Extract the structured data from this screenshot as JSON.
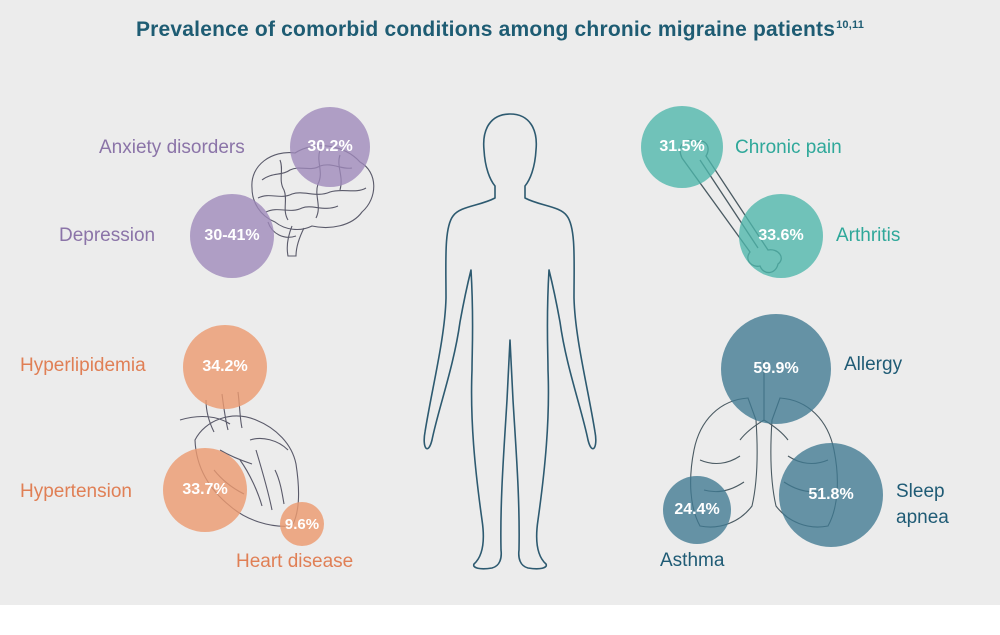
{
  "title": {
    "text": "Prevalence of comorbid conditions among chronic migraine patients",
    "superscript": "10,11"
  },
  "conditions": [
    {
      "name": "Anxiety disorders",
      "value": "30.2%",
      "color": "#9d88ba"
    },
    {
      "name": "Depression",
      "value": "30-41%",
      "color": "#9d88ba"
    },
    {
      "name": "Chronic pain",
      "value": "31.5%",
      "color": "#4db6aa"
    },
    {
      "name": "Arthritis",
      "value": "33.6%",
      "color": "#4db6aa"
    },
    {
      "name": "Hyperlipidemia",
      "value": "34.2%",
      "color": "#ec9a6f"
    },
    {
      "name": "Hypertension",
      "value": "33.7%",
      "color": "#ec9a6f"
    },
    {
      "name": "Heart disease",
      "value": "9.6%",
      "color": "#ec9a6f"
    },
    {
      "name": "Allergy",
      "value": "59.9%",
      "color": "#3f7891"
    },
    {
      "name": "Sleep apnea",
      "value": "51.8%",
      "color": "#3f7891"
    },
    {
      "name": "Asthma",
      "value": "24.4%",
      "color": "#3f7891"
    }
  ]
}
